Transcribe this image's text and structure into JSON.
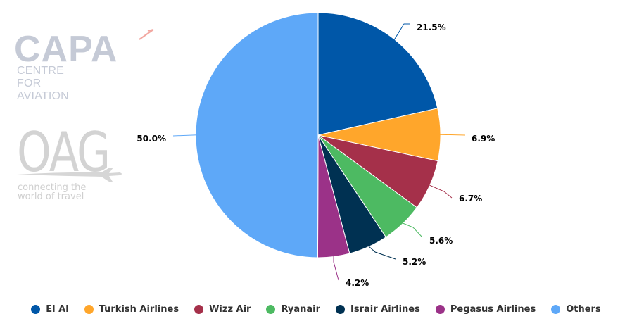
{
  "chart_data": {
    "type": "pie",
    "title": "",
    "categories": [
      "El Al",
      "Turkish Airlines",
      "Wizz Air",
      "Ryanair",
      "Israir Airlines",
      "Pegasus Airlines",
      "Others"
    ],
    "values": [
      21.5,
      6.9,
      6.7,
      5.6,
      5.2,
      4.2,
      50.0
    ],
    "labels": [
      "21.5%",
      "6.9%",
      "6.7%",
      "5.6%",
      "5.2%",
      "4.2%",
      "50.0%"
    ],
    "colors": [
      "#0057a8",
      "#ffa62b",
      "#a5304a",
      "#4dba62",
      "#003152",
      "#9b3288",
      "#5ea8f8"
    ],
    "start_angle_deg": 0,
    "direction": "clockwise",
    "legend_position": "bottom"
  },
  "logos": {
    "capa": {
      "name": "CAPA",
      "subtitle": "CENTRE FOR AVIATION"
    },
    "oag": {
      "name": "OAG",
      "tagline_line1": "connecting the",
      "tagline_line2": "world of travel"
    }
  },
  "legend": {
    "items": [
      {
        "label": "El Al",
        "color": "#0057a8"
      },
      {
        "label": "Turkish Airlines",
        "color": "#ffa62b"
      },
      {
        "label": "Wizz Air",
        "color": "#a5304a"
      },
      {
        "label": "Ryanair",
        "color": "#4dba62"
      },
      {
        "label": "Israir Airlines",
        "color": "#003152"
      },
      {
        "label": "Pegasus Airlines",
        "color": "#9b3288"
      },
      {
        "label": "Others",
        "color": "#5ea8f8"
      }
    ]
  }
}
